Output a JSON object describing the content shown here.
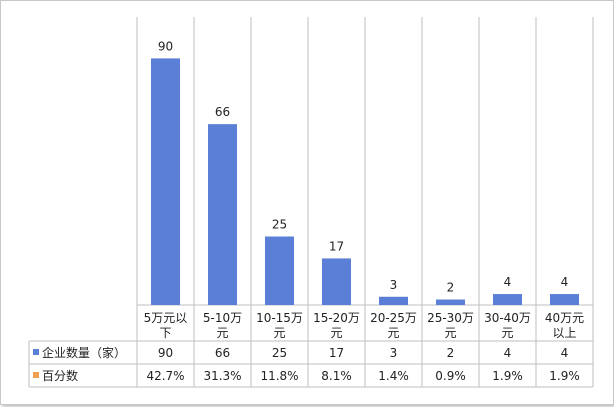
{
  "chart_data": {
    "type": "bar",
    "categories": [
      "5万元以下",
      "5-10万元",
      "10-15万元",
      "15-20万元",
      "20-25万元",
      "25-30万元",
      "30-40万元",
      "40万元以上"
    ],
    "category_lines": [
      [
        "5万元以",
        "下"
      ],
      [
        "5-10万",
        "元"
      ],
      [
        "10-15万",
        "元"
      ],
      [
        "15-20万",
        "元"
      ],
      [
        "20-25万",
        "元"
      ],
      [
        "25-30万",
        "元"
      ],
      [
        "30-40万",
        "元"
      ],
      [
        "40万元",
        "以上"
      ]
    ],
    "series": [
      {
        "name": "企业数量（家）",
        "values": [
          90,
          66,
          25,
          17,
          3,
          2,
          4,
          4
        ],
        "labels": [
          "90",
          "66",
          "25",
          "17",
          "3",
          "2",
          "4",
          "4"
        ],
        "color": "#5b7fd6"
      },
      {
        "name": "百分数",
        "values": [
          42.7,
          31.3,
          11.8,
          8.1,
          1.4,
          0.9,
          1.9,
          1.9
        ],
        "labels": [
          "42.7%",
          "31.3%",
          "11.8%",
          "8.1%",
          "1.4%",
          "0.9%",
          "1.9%",
          "1.9%"
        ],
        "color": "#f0a050"
      }
    ],
    "ylim": [
      0,
      100
    ],
    "grid": false,
    "legend": "data-table"
  }
}
